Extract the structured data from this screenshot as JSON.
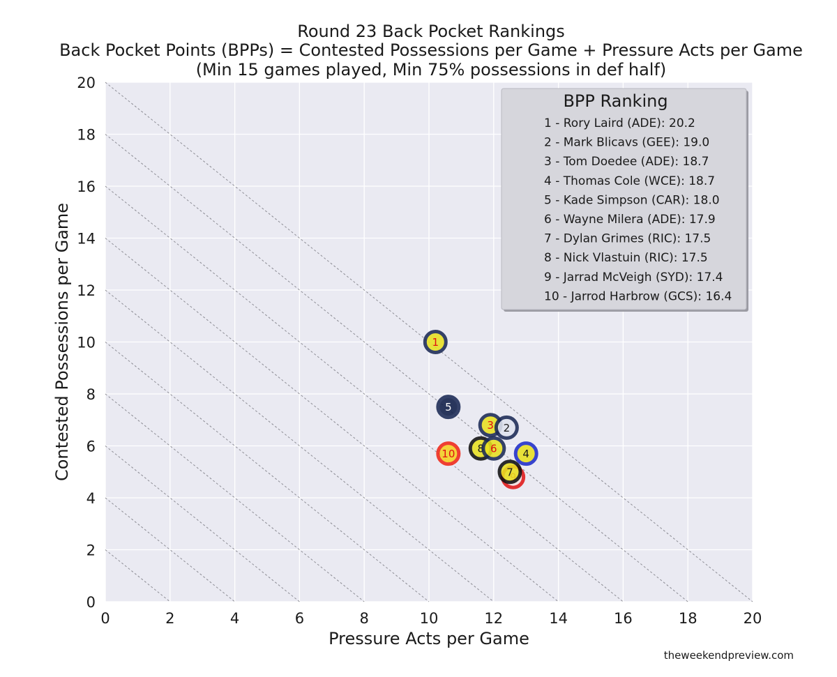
{
  "title_lines": [
    "Round 23 Back Pocket Rankings",
    "Back Pocket Points (BPPs) = Contested Possessions per Game + Pressure Acts per Game",
    "(Min 15 games played, Min 75% possessions in def half)"
  ],
  "credit": "theweekendpreview.com",
  "chart_data": {
    "type": "scatter",
    "xlabel": "Pressure Acts per Game",
    "ylabel": "Contested Possessions per Game",
    "xlim": [
      0,
      20
    ],
    "ylim": [
      0,
      20
    ],
    "xticks": [
      0,
      2,
      4,
      6,
      8,
      10,
      12,
      14,
      16,
      18,
      20
    ],
    "yticks": [
      0,
      2,
      4,
      6,
      8,
      10,
      12,
      14,
      16,
      18,
      20
    ],
    "grid": true,
    "reference_lines": {
      "description": "x + y = constant",
      "constants": [
        2,
        4,
        6,
        8,
        10,
        12,
        14,
        16,
        18,
        20
      ]
    },
    "legend": {
      "title": "BPP Ranking",
      "position": "top-right",
      "entries": [
        "1 - Rory Laird (ADE): 20.2",
        "2 - Mark Blicavs (GEE): 19.0",
        "3 - Tom Doedee (ADE): 18.7",
        "4 - Thomas Cole (WCE): 18.7",
        "5 - Kade Simpson (CAR): 18.0",
        "6 - Wayne Milera (ADE): 17.9",
        "7 - Dylan Grimes (RIC): 17.5",
        "8 - Nick Vlastuin (RIC): 17.5",
        "9 - Jarrad McVeigh (SYD): 17.4",
        "10 - Jarrod Harbrow (GCS): 16.4"
      ]
    },
    "points": [
      {
        "rank": "1",
        "player": "Rory Laird",
        "team": "ADE",
        "x": 10.2,
        "y": 10.0,
        "fill": "#e8e020",
        "ring": "#1c2a55",
        "label_color": "#e01010"
      },
      {
        "rank": "2",
        "player": "Mark Blicavs",
        "team": "GEE",
        "x": 12.4,
        "y": 6.7,
        "fill": "#dfe3ee",
        "ring": "#1c2a55",
        "label_color": "#1a1a1a"
      },
      {
        "rank": "3",
        "player": "Tom Doedee",
        "team": "ADE",
        "x": 11.9,
        "y": 6.8,
        "fill": "#e8e020",
        "ring": "#1c2a55",
        "label_color": "#e01010"
      },
      {
        "rank": "4",
        "player": "Thomas Cole",
        "team": "WCE",
        "x": 13.0,
        "y": 5.7,
        "fill": "#e8e020",
        "ring": "#1f2ec8",
        "label_color": "#1a1a1a"
      },
      {
        "rank": "5",
        "player": "Kade Simpson",
        "team": "CAR",
        "x": 10.6,
        "y": 7.5,
        "fill": "#0f1e48",
        "ring": "#1c2a55",
        "label_color": "#ffffff"
      },
      {
        "rank": "6",
        "player": "Wayne Milera",
        "team": "ADE",
        "x": 12.0,
        "y": 5.9,
        "fill": "#e8e020",
        "ring": "#1c2a55",
        "label_color": "#e01010"
      },
      {
        "rank": "7",
        "player": "Dylan Grimes",
        "team": "RIC",
        "x": 12.5,
        "y": 5.0,
        "fill": "#e8e020",
        "ring": "#111111",
        "label_color": "#1a1a1a"
      },
      {
        "rank": "8",
        "player": "Nick Vlastuin",
        "team": "RIC",
        "x": 11.6,
        "y": 5.9,
        "fill": "#e8e020",
        "ring": "#111111",
        "label_color": "#1a1a1a"
      },
      {
        "rank": "9",
        "player": "Jarrad McVeigh",
        "team": "SYD",
        "x": 12.6,
        "y": 4.8,
        "fill": "#f5e0e0",
        "ring": "#e01818",
        "label_color": "#e01010"
      },
      {
        "rank": "10",
        "player": "Jarrod Harbrow",
        "team": "GCS",
        "x": 10.6,
        "y": 5.7,
        "fill": "#f5d020",
        "ring": "#f02818",
        "label_color": "#e01010"
      }
    ]
  }
}
